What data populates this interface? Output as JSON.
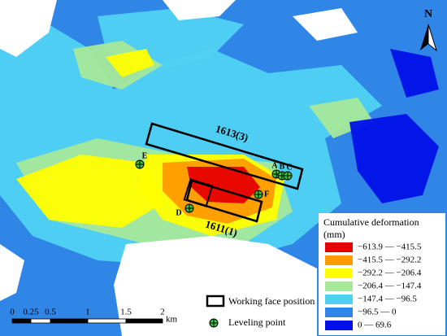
{
  "map": {
    "north_label": "N",
    "working_faces": [
      {
        "label": "1613(3)"
      },
      {
        "label": "1611(1)"
      }
    ],
    "leveling_points": [
      "A",
      "B",
      "C",
      "D",
      "E",
      "F"
    ],
    "scale_bar": {
      "ticks": [
        "0",
        "0.25",
        "0.5",
        "1",
        "1.5",
        "2"
      ],
      "unit": "km"
    },
    "legend": {
      "title": "Cumulative deformation",
      "unit": "(mm)",
      "classes": [
        {
          "label": "−613.9  —  −415.5",
          "color": "#e60000"
        },
        {
          "label": "−415.5  —  −292.2",
          "color": "#ff9a00"
        },
        {
          "label": "−292.2  —  −206.4",
          "color": "#ffff00"
        },
        {
          "label": "−206.4  —  −147.4",
          "color": "#a6e89a"
        },
        {
          "label": "−147.4  —  −96.5",
          "color": "#4fd2f2"
        },
        {
          "label": "−96.5  —  0",
          "color": "#2f86e6"
        },
        {
          "label": "0  —  69.6",
          "color": "#0010e8"
        }
      ],
      "working_face": "Working face position",
      "leveling_point": "Leveling point"
    }
  }
}
